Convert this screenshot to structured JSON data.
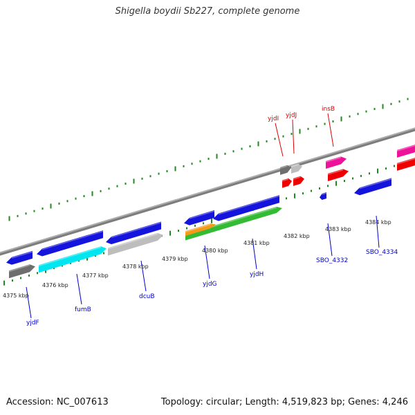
{
  "title": "Shigella boydii Sb227, complete genome",
  "footer": {
    "accession": "Accession: NC_007613",
    "summary": "Topology: circular; Length: 4,519,823 bp; Genes: 4,246"
  },
  "colors": {
    "background": "#ffffff",
    "backbone": "#8a8a8a",
    "tick": "#1f8a1f",
    "label_forward": "#dd0000",
    "label_reverse": "#0000cc",
    "gene_blue": "#1414dc",
    "gene_cyan": "#00e6f0",
    "gene_gray": "#bdbdbd",
    "gene_darkgray": "#6e6e6e",
    "gene_green": "#33bb33",
    "gene_orange": "#f39a1a",
    "gene_red": "#ee0000",
    "gene_pink": "#ee1199"
  },
  "kbp_labels": [
    "4375 kbp",
    "4376 kbp",
    "4377 kbp",
    "4378 kbp",
    "4379 kbp",
    "4380 kbp",
    "4381 kbp",
    "4382 kbp",
    "4383 kbp",
    "4384 kbp"
  ],
  "gene_labels_top": [
    "yjdI",
    "yjdJ",
    "insB"
  ],
  "gene_labels_bottom": [
    "yjdF",
    "fumB",
    "dcuB",
    "yjdG",
    "yjdH",
    "SBO_4332",
    "SBO_4334"
  ]
}
